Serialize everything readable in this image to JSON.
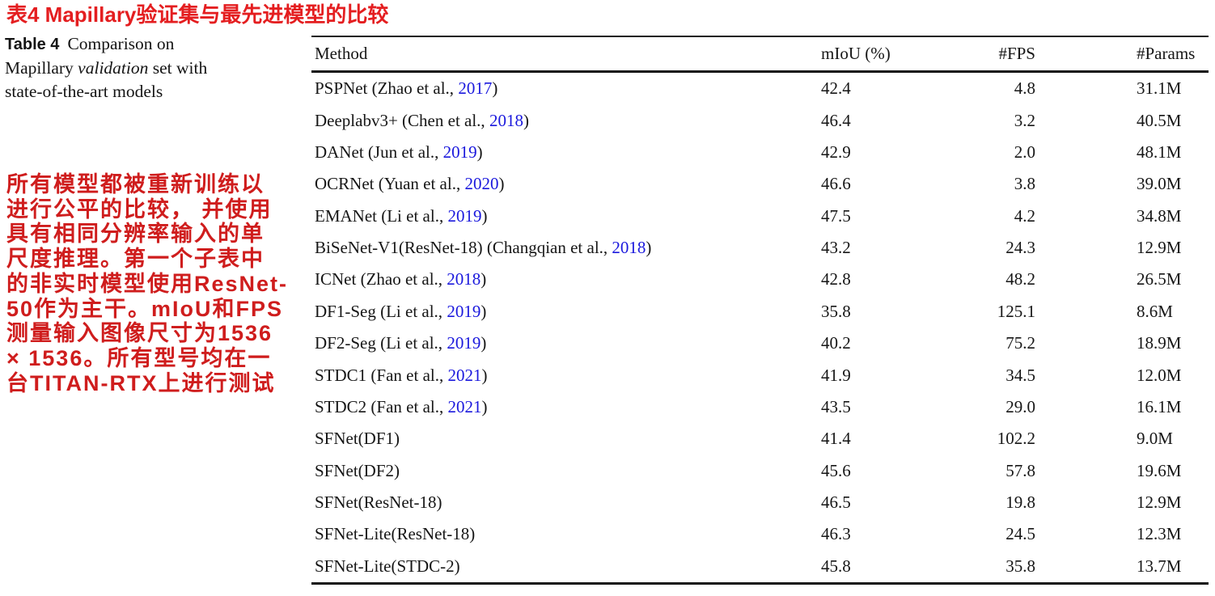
{
  "page": {
    "title_zh": "表4 Mapillary验证集与最先进模型的比较",
    "caption": {
      "label": "Table 4",
      "line1_rest": "Comparison on",
      "line2_pre": "Mapillary ",
      "line2_italic": "validation",
      "line2_post": " set with",
      "line3": "state-of-the-art models"
    },
    "annotation_zh": "所有模型都被重新训练以\n进行公平的比较， 并使用\n具有相同分辨率输入的单\n尺度推理。第一个子表中\n的非实时模型使用ResNet-\n50作为主干。mIoU和FPS\n测量输入图像尺寸为1536\n× 1536。所有型号均在一\n台TITAN-RTX上进行测试"
  },
  "colors": {
    "title_red": "#e41e20",
    "annotation_red": "#cf1d1d",
    "citation_blue": "#1a18dd",
    "rule_black": "#121212"
  },
  "table": {
    "columns": [
      "Method",
      "mIoU (%)",
      "#FPS",
      "#Params"
    ],
    "rows": [
      {
        "method_pre": "PSPNet (Zhao et al., ",
        "year": "2017",
        "method_post": ")",
        "miou": "42.4",
        "fps": "4.8",
        "params": "31.1M"
      },
      {
        "method_pre": "Deeplabv3+ (Chen et al., ",
        "year": "2018",
        "method_post": ")",
        "miou": "46.4",
        "fps": "3.2",
        "params": "40.5M"
      },
      {
        "method_pre": "DANet (Jun et al., ",
        "year": "2019",
        "method_post": ")",
        "miou": "42.9",
        "fps": "2.0",
        "params": "48.1M"
      },
      {
        "method_pre": "OCRNet (Yuan et al., ",
        "year": "2020",
        "method_post": ")",
        "miou": "46.6",
        "fps": "3.8",
        "params": "39.0M"
      },
      {
        "method_pre": "EMANet (Li et al., ",
        "year": "2019",
        "method_post": ")",
        "miou": "47.5",
        "fps": "4.2",
        "params": "34.8M"
      },
      {
        "method_pre": "BiSeNet-V1(ResNet-18) (Changqian et al., ",
        "year": "2018",
        "method_post": ")",
        "miou": "43.2",
        "fps": "24.3",
        "params": "12.9M"
      },
      {
        "method_pre": "ICNet (Zhao et al., ",
        "year": "2018",
        "method_post": ")",
        "miou": "42.8",
        "fps": "48.2",
        "params": "26.5M"
      },
      {
        "method_pre": "DF1-Seg (Li et al., ",
        "year": "2019",
        "method_post": ")",
        "miou": "35.8",
        "fps": "125.1",
        "params": "8.6M"
      },
      {
        "method_pre": "DF2-Seg (Li et al., ",
        "year": "2019",
        "method_post": ")",
        "miou": "40.2",
        "fps": "75.2",
        "params": "18.9M"
      },
      {
        "method_pre": "STDC1 (Fan et al., ",
        "year": "2021",
        "method_post": ")",
        "miou": "41.9",
        "fps": "34.5",
        "params": "12.0M"
      },
      {
        "method_pre": "STDC2 (Fan et al., ",
        "year": "2021",
        "method_post": ")",
        "miou": "43.5",
        "fps": "29.0",
        "params": "16.1M"
      },
      {
        "method_pre": "SFNet(DF1)",
        "year": "",
        "method_post": "",
        "miou": "41.4",
        "fps": "102.2",
        "params": "9.0M"
      },
      {
        "method_pre": "SFNet(DF2)",
        "year": "",
        "method_post": "",
        "miou": "45.6",
        "fps": "57.8",
        "params": "19.6M"
      },
      {
        "method_pre": "SFNet(ResNet-18)",
        "year": "",
        "method_post": "",
        "miou": "46.5",
        "fps": "19.8",
        "params": "12.9M"
      },
      {
        "method_pre": "SFNet-Lite(ResNet-18)",
        "year": "",
        "method_post": "",
        "miou": "46.3",
        "fps": "24.5",
        "params": "12.3M"
      },
      {
        "method_pre": "SFNet-Lite(STDC-2)",
        "year": "",
        "method_post": "",
        "miou": "45.8",
        "fps": "35.8",
        "params": "13.7M"
      }
    ]
  }
}
